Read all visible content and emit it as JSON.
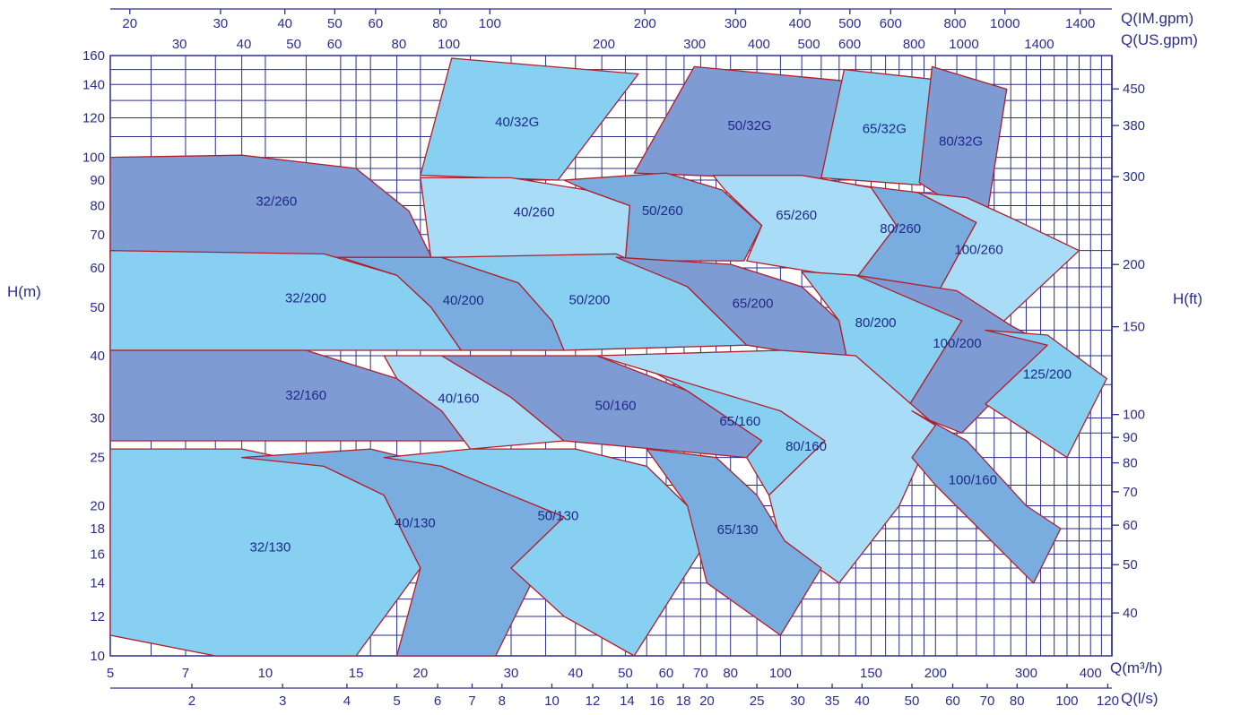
{
  "chart_data": {
    "type": "area",
    "title": "",
    "colors": {
      "light": "#a8dcf7",
      "medium": "#87d0f1",
      "blue": "#79addf",
      "dark": "#7f9bd4",
      "outline": "#b01e2a",
      "grid": "#2b2e8f"
    },
    "x_axis": {
      "label": "Q(m³/h)",
      "scale": "log",
      "range": [
        5,
        440
      ],
      "ticks": [
        "5",
        "7",
        "10",
        "15",
        "20",
        "30",
        "40",
        "50",
        "60",
        "70",
        "80",
        "100",
        "150",
        "200",
        "300",
        "400"
      ]
    },
    "x_axis_ls": {
      "label": "Q(l/s)",
      "ticks": [
        "2",
        "3",
        "4",
        "5",
        "6",
        "7",
        "8",
        "10",
        "12",
        "14",
        "16",
        "18",
        "20",
        "25",
        "30",
        "35",
        "40",
        "50",
        "60",
        "70",
        "80",
        "100",
        "120"
      ]
    },
    "x_top_im": {
      "label": "Q(IM.gpm)",
      "ticks": [
        "20",
        "30",
        "40",
        "50",
        "60",
        "80",
        "100",
        "200",
        "300",
        "400",
        "500",
        "600",
        "800",
        "1000",
        "1400"
      ]
    },
    "x_top_us": {
      "label": "Q(US.gpm)",
      "ticks": [
        "30",
        "40",
        "50",
        "60",
        "80",
        "100",
        "200",
        "300",
        "400",
        "500",
        "600",
        "800",
        "1000",
        "1400"
      ]
    },
    "y_axis": {
      "label": "H(m)",
      "scale": "log",
      "range": [
        10,
        160
      ],
      "ticks": [
        "10",
        "12",
        "14",
        "16",
        "18",
        "20",
        "25",
        "30",
        "40",
        "50",
        "60",
        "70",
        "80",
        "90",
        "100",
        "120",
        "140",
        "160"
      ]
    },
    "y_axis_ft": {
      "label": "H(ft)",
      "ticks": [
        "40",
        "50",
        "60",
        "70",
        "80",
        "90",
        "100",
        "150",
        "200",
        "300",
        "380",
        "450"
      ]
    },
    "zones": [
      {
        "name": "40/32G",
        "tone": "medium",
        "poly": [
          [
            20,
            92
          ],
          [
            23,
            158
          ],
          [
            53,
            147
          ],
          [
            37,
            90
          ]
        ]
      },
      {
        "name": "50/32G",
        "tone": "dark",
        "poly": [
          [
            52,
            93
          ],
          [
            68,
            152
          ],
          [
            136,
            142
          ],
          [
            120,
            90
          ]
        ]
      },
      {
        "name": "65/32G",
        "tone": "medium",
        "poly": [
          [
            120,
            91
          ],
          [
            133,
            150
          ],
          [
            215,
            142
          ],
          [
            187,
            88
          ]
        ]
      },
      {
        "name": "80/32G",
        "tone": "dark",
        "poly": [
          [
            186,
            89
          ],
          [
            197,
            152
          ],
          [
            275,
            137
          ],
          [
            250,
            73
          ]
        ]
      },
      {
        "name": "32/260",
        "tone": "dark",
        "poly": [
          [
            5,
            100
          ],
          [
            9,
            101
          ],
          [
            15,
            95
          ],
          [
            19,
            78
          ],
          [
            21,
            63
          ],
          [
            5,
            63
          ]
        ]
      },
      {
        "name": "40/260",
        "tone": "light",
        "poly": [
          [
            20,
            91
          ],
          [
            30,
            91
          ],
          [
            42,
            86
          ],
          [
            51,
            80
          ],
          [
            50,
            62
          ],
          [
            21,
            62
          ]
        ]
      },
      {
        "name": "50/260",
        "tone": "blue",
        "poly": [
          [
            38,
            90
          ],
          [
            60,
            93
          ],
          [
            77,
            86
          ],
          [
            92,
            73
          ],
          [
            85,
            62
          ],
          [
            50,
            62
          ],
          [
            51,
            80
          ],
          [
            42,
            86
          ]
        ]
      },
      {
        "name": "65/260",
        "tone": "light",
        "poly": [
          [
            74,
            92
          ],
          [
            110,
            92
          ],
          [
            150,
            87
          ],
          [
            168,
            73
          ],
          [
            140,
            57
          ],
          [
            86,
            62
          ],
          [
            92,
            73
          ],
          [
            78,
            86
          ]
        ]
      },
      {
        "name": "80/260",
        "tone": "blue",
        "poly": [
          [
            140,
            88
          ],
          [
            185,
            85
          ],
          [
            240,
            74
          ],
          [
            195,
            50
          ],
          [
            140,
            57
          ],
          [
            168,
            73
          ],
          [
            150,
            87
          ]
        ]
      },
      {
        "name": "100/260",
        "tone": "light",
        "poly": [
          [
            185,
            85
          ],
          [
            230,
            83
          ],
          [
            285,
            75
          ],
          [
            380,
            65
          ],
          [
            230,
            40
          ],
          [
            195,
            50
          ],
          [
            240,
            74
          ]
        ]
      },
      {
        "name": "32/200",
        "tone": "medium",
        "poly": [
          [
            5,
            65
          ],
          [
            13,
            64
          ],
          [
            18,
            58
          ],
          [
            21,
            50
          ],
          [
            24,
            41
          ],
          [
            5,
            41
          ]
        ]
      },
      {
        "name": "40/200",
        "tone": "blue",
        "poly": [
          [
            14,
            63
          ],
          [
            22,
            63
          ],
          [
            31,
            56
          ],
          [
            36,
            47
          ],
          [
            38,
            41
          ],
          [
            24,
            41
          ],
          [
            21,
            50
          ],
          [
            18,
            58
          ]
        ]
      },
      {
        "name": "50/200",
        "tone": "medium",
        "poly": [
          [
            22,
            63
          ],
          [
            48,
            64
          ],
          [
            66,
            55
          ],
          [
            86,
            42
          ],
          [
            38,
            41
          ],
          [
            36,
            47
          ],
          [
            31,
            56
          ]
        ]
      },
      {
        "name": "65/200",
        "tone": "dark",
        "poly": [
          [
            48,
            63
          ],
          [
            80,
            61
          ],
          [
            110,
            55
          ],
          [
            130,
            47
          ],
          [
            135,
            39
          ],
          [
            86,
            42
          ],
          [
            66,
            55
          ]
        ]
      },
      {
        "name": "80/200",
        "tone": "medium",
        "poly": [
          [
            110,
            59
          ],
          [
            140,
            58
          ],
          [
            185,
            52
          ],
          [
            225,
            47
          ],
          [
            175,
            31
          ],
          [
            135,
            39
          ],
          [
            130,
            47
          ]
        ]
      },
      {
        "name": "100/200",
        "tone": "dark",
        "poly": [
          [
            140,
            58
          ],
          [
            220,
            54
          ],
          [
            280,
            46
          ],
          [
            330,
            42
          ],
          [
            225,
            28
          ],
          [
            175,
            31
          ],
          [
            225,
            47
          ]
        ]
      },
      {
        "name": "125/200",
        "tone": "medium",
        "poly": [
          [
            250,
            45
          ],
          [
            330,
            44
          ],
          [
            400,
            38
          ],
          [
            430,
            36
          ],
          [
            360,
            25
          ],
          [
            250,
            32
          ],
          [
            330,
            42
          ]
        ]
      },
      {
        "name": "32/160",
        "tone": "dark",
        "poly": [
          [
            5,
            41
          ],
          [
            12,
            41
          ],
          [
            18,
            36
          ],
          [
            22,
            31
          ],
          [
            25,
            27
          ],
          [
            5,
            27
          ]
        ]
      },
      {
        "name": "40/160",
        "tone": "light",
        "poly": [
          [
            17,
            40
          ],
          [
            22,
            40
          ],
          [
            30,
            33
          ],
          [
            38,
            27
          ],
          [
            25,
            26
          ],
          [
            22,
            31
          ],
          [
            18,
            36
          ]
        ]
      },
      {
        "name": "50/160",
        "tone": "dark",
        "poly": [
          [
            22,
            40
          ],
          [
            44,
            40
          ],
          [
            66,
            34
          ],
          [
            92,
            27
          ],
          [
            86,
            25
          ],
          [
            38,
            27
          ],
          [
            30,
            33
          ]
        ]
      },
      {
        "name": "65/160",
        "tone": "medium",
        "poly": [
          [
            52,
            39
          ],
          [
            75,
            37
          ],
          [
            100,
            31
          ],
          [
            122,
            27
          ],
          [
            95,
            21
          ],
          [
            86,
            25
          ],
          [
            92,
            27
          ],
          [
            66,
            34
          ]
        ]
      },
      {
        "name": "80/160",
        "tone": "light",
        "poly": [
          [
            44,
            40
          ],
          [
            100,
            41
          ],
          [
            140,
            40
          ],
          [
            200,
            29
          ],
          [
            170,
            20
          ],
          [
            130,
            14
          ],
          [
            100,
            17
          ],
          [
            95,
            21
          ],
          [
            122,
            27
          ],
          [
            100,
            31
          ]
        ]
      },
      {
        "name": "100/160",
        "tone": "blue",
        "poly": [
          [
            180,
            31
          ],
          [
            230,
            27
          ],
          [
            300,
            20
          ],
          [
            350,
            18
          ],
          [
            310,
            14
          ],
          [
            200,
            22
          ],
          [
            180,
            25
          ],
          [
            200,
            29
          ]
        ]
      },
      {
        "name": "32/130",
        "tone": "medium",
        "poly": [
          [
            5,
            26
          ],
          [
            9,
            26
          ],
          [
            13,
            24
          ],
          [
            17,
            21
          ],
          [
            20,
            15
          ],
          [
            15,
            10
          ],
          [
            8,
            10
          ],
          [
            5,
            11
          ]
        ]
      },
      {
        "name": "40/130",
        "tone": "blue",
        "poly": [
          [
            9,
            25
          ],
          [
            16,
            26
          ],
          [
            22,
            24
          ],
          [
            30,
            21
          ],
          [
            38,
            19
          ],
          [
            28,
            10
          ],
          [
            18,
            10
          ],
          [
            20,
            15
          ],
          [
            17,
            21
          ],
          [
            13,
            24
          ]
        ]
      },
      {
        "name": "50/130",
        "tone": "medium",
        "poly": [
          [
            17,
            25
          ],
          [
            25,
            26
          ],
          [
            40,
            26
          ],
          [
            55,
            24
          ],
          [
            66,
            20
          ],
          [
            72,
            17
          ],
          [
            52,
            10
          ],
          [
            38,
            12
          ],
          [
            30,
            15
          ],
          [
            38,
            19
          ],
          [
            30,
            21
          ],
          [
            22,
            24
          ]
        ]
      },
      {
        "name": "65/130",
        "tone": "blue",
        "poly": [
          [
            55,
            26
          ],
          [
            75,
            25
          ],
          [
            90,
            21
          ],
          [
            102,
            17
          ],
          [
            120,
            15
          ],
          [
            100,
            11
          ],
          [
            72,
            14
          ],
          [
            66,
            20
          ]
        ]
      }
    ]
  }
}
